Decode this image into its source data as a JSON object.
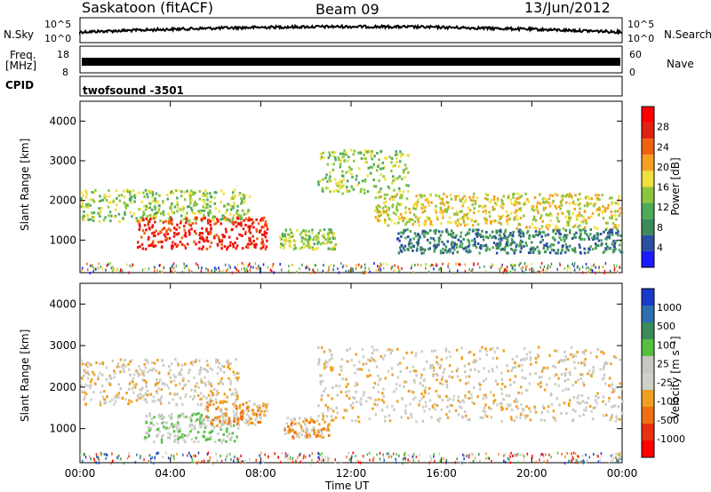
{
  "header": {
    "station": "Saskatoon (fitACF)",
    "beam": "Beam 09",
    "date": "13/Jun/2012"
  },
  "top_panels": {
    "nsky_label": "N.Sky",
    "nsky_ticks": [
      "10^5",
      "10^0"
    ],
    "nsearch_label": "N.Search",
    "nsearch_ticks": [
      "10^5",
      "10^0"
    ],
    "freq_label_1": "Freq.",
    "freq_label_2": "[MHz]",
    "freq_ticks": [
      "18",
      "8"
    ],
    "nave_label": "Nave",
    "nave_ticks": [
      "60",
      "0"
    ],
    "cpid_label": "CPID",
    "cpid_value": "twofsound -3501"
  },
  "colors": {
    "power_scale": [
      "#1a1aff",
      "#2a4fa0",
      "#3c8a5a",
      "#4faa5a",
      "#8cc63c",
      "#f0e040",
      "#f5a020",
      "#f06010",
      "#e02010",
      "#ff0000"
    ],
    "velocity_scale": [
      "#1a3acb",
      "#2d6fb0",
      "#3c8a5a",
      "#55c040",
      "#c8c8c0",
      "#d0d0c8",
      "#f0a020",
      "#f07010",
      "#e83010",
      "#ff0000"
    ]
  },
  "chart_data": [
    {
      "type": "heatmap",
      "title": "Power",
      "ylabel": "Slant Range [km]",
      "colorbar_label": "Power [dB]",
      "colorbar_ticks": [
        "28",
        "24",
        "20",
        "16",
        "12",
        "8",
        "4"
      ],
      "ylim": [
        180,
        4500
      ],
      "yticks": [
        "4000",
        "3000",
        "2000",
        "1000"
      ],
      "xlim": [
        "00:00",
        "24:00"
      ],
      "regions": [
        {
          "t0": 0.0,
          "t1": 7.5,
          "r0": 1500,
          "r1": 2300,
          "power": 14
        },
        {
          "t0": 2.5,
          "t1": 8.3,
          "r0": 800,
          "r1": 1600,
          "power": 28
        },
        {
          "t0": 8.8,
          "t1": 11.3,
          "r0": 800,
          "r1": 1300,
          "power": 12
        },
        {
          "t0": 10.5,
          "t1": 14.5,
          "r0": 2200,
          "r1": 3300,
          "power": 14
        },
        {
          "t0": 13.0,
          "t1": 19.0,
          "r0": 1400,
          "r1": 2200,
          "power": 16
        },
        {
          "t0": 19.0,
          "t1": 24.0,
          "r0": 1300,
          "r1": 2200,
          "power": 16
        },
        {
          "t0": 14.0,
          "t1": 24.0,
          "r0": 700,
          "r1": 1300,
          "power": 6
        }
      ]
    },
    {
      "type": "heatmap",
      "title": "Velocity",
      "ylabel": "Slant Range [km]",
      "colorbar_label": "Velocity [m s⁻¹]",
      "colorbar_ticks": [
        "1000",
        "500",
        "100",
        "25",
        "-25",
        "-100",
        "-500",
        "-1000"
      ],
      "ylim": [
        180,
        4500
      ],
      "yticks": [
        "4000",
        "3000",
        "2000",
        "1000"
      ],
      "xticks": [
        "00:00",
        "04:00",
        "08:00",
        "12:00",
        "16:00",
        "20:00",
        "00:00"
      ],
      "xlabel": "Time UT",
      "regions": [
        {
          "t0": 0.0,
          "t1": 7.0,
          "r0": 1600,
          "r1": 2700,
          "velocity": 0
        },
        {
          "t0": 2.8,
          "t1": 7.0,
          "r0": 700,
          "r1": 1400,
          "velocity": 200
        },
        {
          "t0": 5.5,
          "t1": 8.3,
          "r0": 1100,
          "r1": 1700,
          "velocity": -300
        },
        {
          "t0": 9.0,
          "t1": 11.0,
          "r0": 800,
          "r1": 1300,
          "velocity": -300
        },
        {
          "t0": 10.5,
          "t1": 24.0,
          "r0": 1200,
          "r1": 3000,
          "velocity": 0
        }
      ]
    }
  ]
}
